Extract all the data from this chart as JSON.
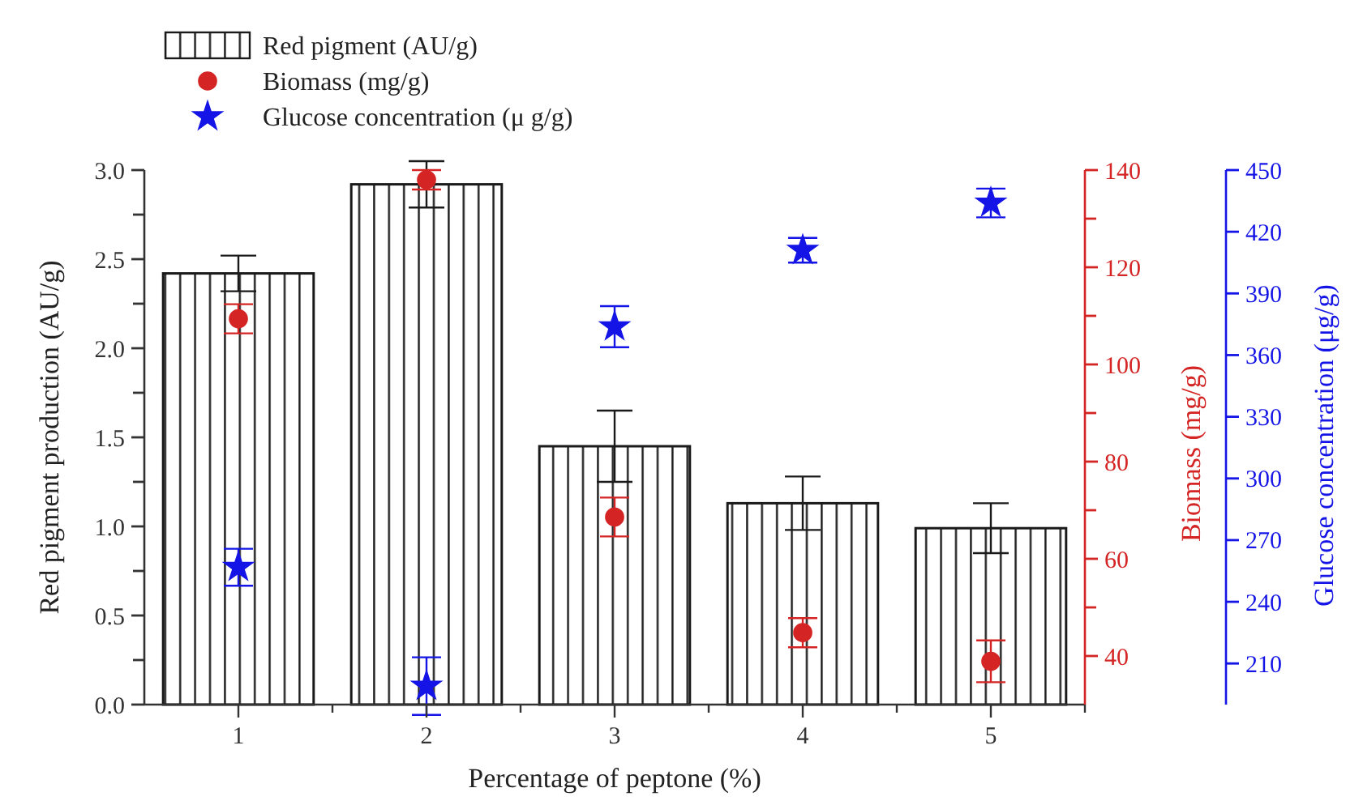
{
  "chart_data": {
    "type": "bar",
    "xlabel": "Percentage of peptone (%)",
    "ylabel": "Red pigment production (AU/g)",
    "y2label": "Biomass (mg/g)",
    "y3label": "Glucose concentration (μg/g)",
    "categories": [
      "1",
      "2",
      "3",
      "4",
      "5"
    ],
    "series": [
      {
        "name": "Red pigment (AU/g)",
        "color": "#1a1a1a",
        "values": [
          2.42,
          2.92,
          1.45,
          1.13,
          0.99
        ],
        "errors": [
          0.1,
          0.13,
          0.2,
          0.15,
          0.14
        ]
      },
      {
        "name": "Biomass (mg/g)",
        "type": "scatter",
        "axis": "y2",
        "marker": "circle",
        "color": "#d42424",
        "values": [
          109.4,
          138,
          68.6,
          44.8,
          38.9
        ],
        "errors": [
          3,
          2,
          4,
          3,
          4.3
        ]
      },
      {
        "name": "Glucose concentration (μ g/g)",
        "type": "scatter",
        "axis": "y3",
        "marker": "star",
        "color": "#1414e6",
        "values": [
          256.8,
          199,
          373.8,
          411,
          434
        ],
        "errors": [
          9,
          14,
          10,
          6,
          7
        ]
      }
    ],
    "ylim": [
      0,
      3.0
    ],
    "yticks": [
      {
        "value": 0,
        "label": "0.0"
      },
      {
        "value": 0.25,
        "label": null
      },
      {
        "value": 0.5,
        "label": "0.5"
      },
      {
        "value": 0.75,
        "label": null
      },
      {
        "value": 1,
        "label": "1.0"
      },
      {
        "value": 1.25,
        "label": null
      },
      {
        "value": 1.5,
        "label": "1.5"
      },
      {
        "value": 1.75,
        "label": null
      },
      {
        "value": 2,
        "label": "2.0"
      },
      {
        "value": 2.25,
        "label": null
      },
      {
        "value": 2.5,
        "label": "2.5"
      },
      {
        "value": 2.75,
        "label": null
      },
      {
        "value": 3,
        "label": "3.0"
      }
    ],
    "y2lim": [
      30,
      140
    ],
    "y2ticks": [
      40,
      {
        "value": 50,
        "label": null
      },
      60,
      {
        "value": 70,
        "label": null
      },
      80,
      {
        "value": 90,
        "label": null
      },
      100,
      {
        "value": 110,
        "label": null
      },
      120,
      {
        "value": 130,
        "label": null
      },
      140
    ],
    "y3lim": [
      190,
      450
    ],
    "y3ticks": [
      210,
      240,
      270,
      300,
      330,
      360,
      390,
      420,
      450
    ],
    "legend": "top left",
    "grid": false
  }
}
